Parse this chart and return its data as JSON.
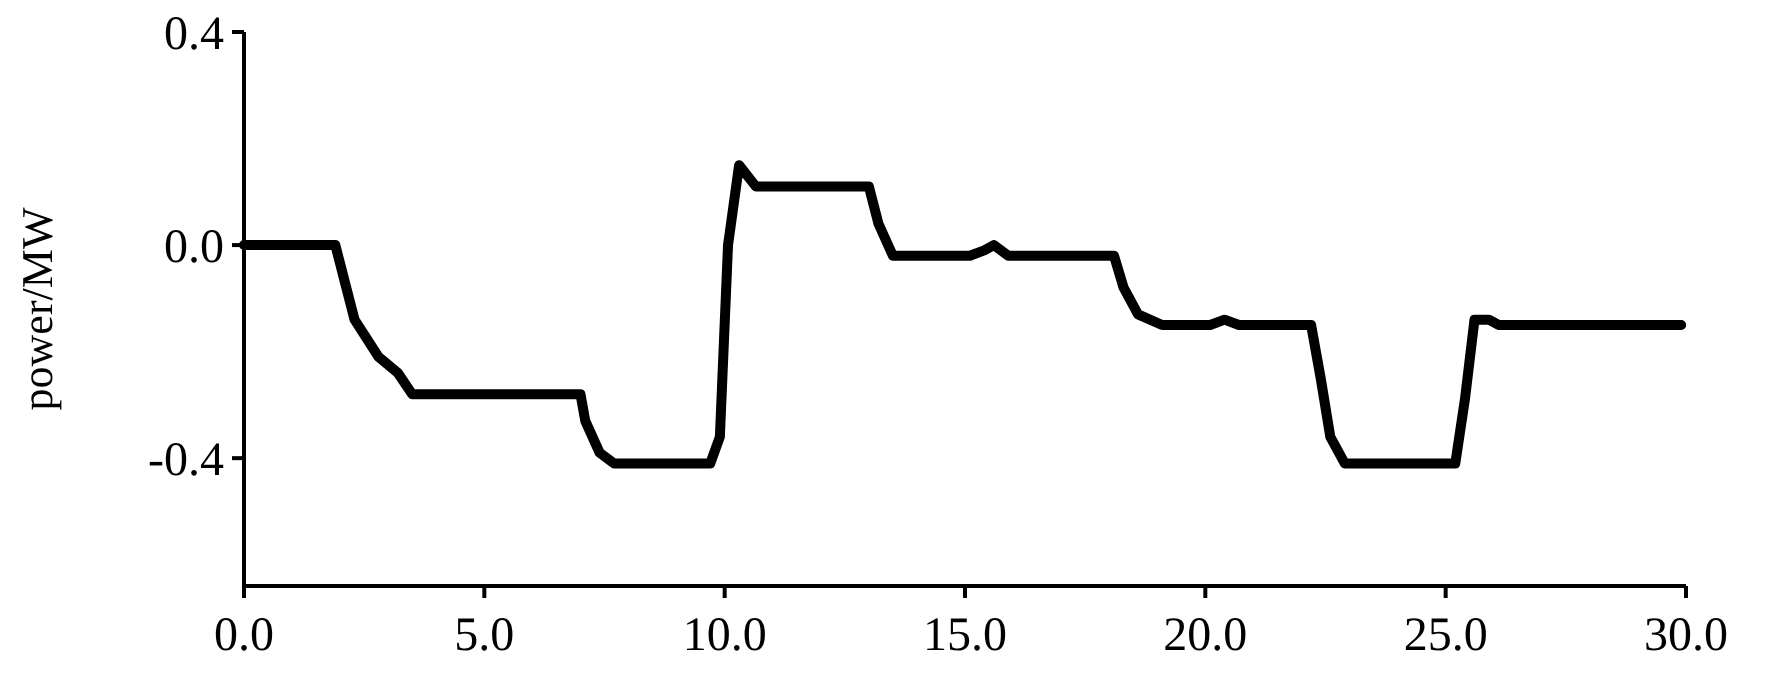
{
  "chart_data": {
    "type": "line",
    "ylabel": "power/MW",
    "xlim": [
      0,
      30
    ],
    "ylim": [
      -0.64,
      0.4
    ],
    "xticks": [
      {
        "value": 0,
        "label": "0.0"
      },
      {
        "value": 5,
        "label": "5.0"
      },
      {
        "value": 10,
        "label": "10.0"
      },
      {
        "value": 15,
        "label": "15.0"
      },
      {
        "value": 20,
        "label": "20.0"
      },
      {
        "value": 25,
        "label": "25.0"
      },
      {
        "value": 30,
        "label": "30.0"
      }
    ],
    "yticks": [
      {
        "value": 0.4,
        "label": "0.4"
      },
      {
        "value": 0,
        "label": "0.0"
      },
      {
        "value": -0.4,
        "label": "-0.4"
      }
    ],
    "marker": "none",
    "line_style": "solid",
    "series": [
      {
        "color": "#000000",
        "x": [
          0,
          1.9,
          2.3,
          2.8,
          3.2,
          3.5,
          3.7,
          7.0,
          7.1,
          7.4,
          7.7,
          9.7,
          9.9,
          10.07,
          10.3,
          10.65,
          13.0,
          13.2,
          13.5,
          15.1,
          15.4,
          15.6,
          15.9,
          18.1,
          18.3,
          18.6,
          19.1,
          20.1,
          20.4,
          20.7,
          22.2,
          22.4,
          22.6,
          22.9,
          25.2,
          25.4,
          25.6,
          25.9,
          26.1,
          29.9
        ],
        "values": [
          0,
          0,
          -0.14,
          -0.21,
          -0.24,
          -0.28,
          -0.28,
          -0.28,
          -0.33,
          -0.39,
          -0.41,
          -0.41,
          -0.36,
          0,
          0.15,
          0.11,
          0.11,
          0.04,
          -0.02,
          -0.02,
          -0.01,
          0,
          -0.02,
          -0.02,
          -0.08,
          -0.13,
          -0.15,
          -0.15,
          -0.14,
          -0.15,
          -0.15,
          -0.25,
          -0.36,
          -0.41,
          -0.41,
          -0.29,
          -0.14,
          -0.14,
          -0.15,
          -0.15
        ]
      }
    ]
  }
}
